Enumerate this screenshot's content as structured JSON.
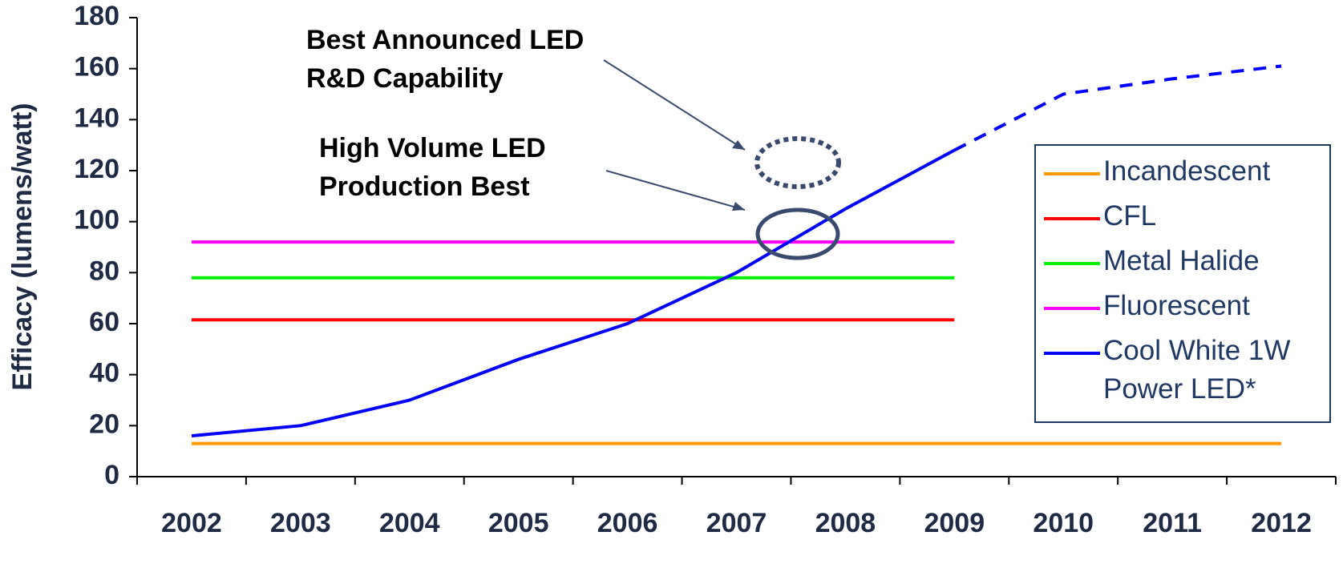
{
  "chart_data": {
    "type": "line",
    "y_label": "Efficacy (lumens/watt)",
    "categories": [
      "2002",
      "2003",
      "2004",
      "2005",
      "2006",
      "2007",
      "2008",
      "2009",
      "2010",
      "2011",
      "2012"
    ],
    "series": [
      {
        "name": "Incandescent",
        "color": "#ff9900",
        "values": [
          13,
          13,
          13,
          13,
          13,
          13,
          13,
          13,
          13,
          13,
          13
        ]
      },
      {
        "name": "CFL",
        "color": "#ff0000",
        "values": [
          61.5,
          61.5,
          61.5,
          61.5,
          61.5,
          61.5,
          61.5,
          61.5,
          null,
          null,
          null
        ]
      },
      {
        "name": "Metal Halide",
        "color": "#00ee00",
        "values": [
          78,
          78,
          78,
          78,
          78,
          78,
          78,
          78,
          null,
          null,
          null
        ]
      },
      {
        "name": "Fluorescent",
        "color": "#ff00ff",
        "values": [
          92,
          92,
          92,
          92,
          92,
          92,
          92,
          92,
          null,
          null,
          null
        ]
      },
      {
        "name": "Cool White 1W Power LED*",
        "color": "#0000ff",
        "values": [
          16,
          20,
          30,
          46,
          60,
          80,
          105,
          128,
          150,
          156,
          161
        ],
        "dashed_from": "2009"
      }
    ],
    "ylim": [
      0,
      180
    ],
    "yticks": [
      0,
      20,
      40,
      60,
      80,
      100,
      120,
      140,
      160,
      180
    ],
    "annotations": [
      {
        "lines": [
          "Best Announced LED",
          "R&D Capability"
        ]
      },
      {
        "lines": [
          "High Volume LED",
          "Production Best"
        ]
      }
    ]
  }
}
